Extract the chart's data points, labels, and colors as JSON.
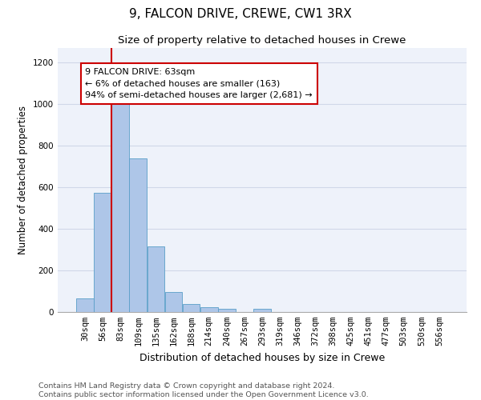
{
  "title": "9, FALCON DRIVE, CREWE, CW1 3RX",
  "subtitle": "Size of property relative to detached houses in Crewe",
  "xlabel": "Distribution of detached houses by size in Crewe",
  "ylabel": "Number of detached properties",
  "categories": [
    "30sqm",
    "56sqm",
    "83sqm",
    "109sqm",
    "135sqm",
    "162sqm",
    "188sqm",
    "214sqm",
    "240sqm",
    "267sqm",
    "293sqm",
    "319sqm",
    "346sqm",
    "372sqm",
    "398sqm",
    "425sqm",
    "451sqm",
    "477sqm",
    "503sqm",
    "530sqm",
    "556sqm"
  ],
  "values": [
    65,
    575,
    1000,
    740,
    315,
    95,
    38,
    25,
    15,
    0,
    15,
    0,
    0,
    0,
    0,
    0,
    0,
    0,
    0,
    0,
    0
  ],
  "bar_color": "#aec6e8",
  "bar_edge_color": "#5a9fc8",
  "annotation_text_lines": [
    "9 FALCON DRIVE: 63sqm",
    "← 6% of detached houses are smaller (163)",
    "94% of semi-detached houses are larger (2,681) →"
  ],
  "annotation_box_color": "#ffffff",
  "annotation_box_edge_color": "#cc0000",
  "vline_color": "#cc0000",
  "vline_x_index": 1.5,
  "ylim": [
    0,
    1270
  ],
  "yticks": [
    0,
    200,
    400,
    600,
    800,
    1000,
    1200
  ],
  "grid_color": "#d0d8e8",
  "bg_color": "#eef2fa",
  "footer_line1": "Contains HM Land Registry data © Crown copyright and database right 2024.",
  "footer_line2": "Contains public sector information licensed under the Open Government Licence v3.0.",
  "title_fontsize": 11,
  "subtitle_fontsize": 9.5,
  "xlabel_fontsize": 9,
  "ylabel_fontsize": 8.5,
  "tick_fontsize": 7.5,
  "footer_fontsize": 6.8,
  "annotation_fontsize": 8
}
